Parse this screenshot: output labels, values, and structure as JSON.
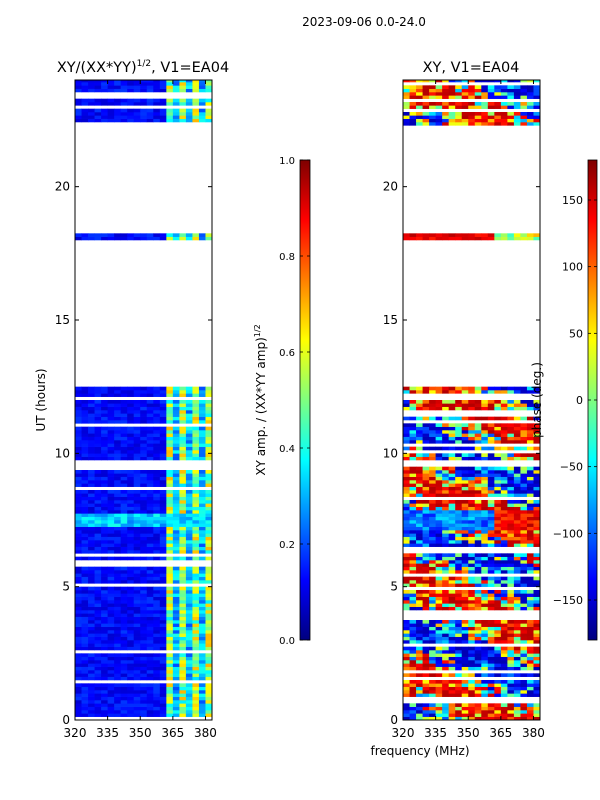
{
  "figure": {
    "suptitle": "2023-09-06 0.0-24.0",
    "xlabel": "frequency (MHz)"
  },
  "chart_data": [
    {
      "type": "heatmap",
      "title": "XY/(XX*YY)",
      "title_exp": "1/2",
      "title_suffix": ", V1=EA04",
      "ylabel": "UT (hours)",
      "x_ticks": [
        320,
        335,
        350,
        365,
        380
      ],
      "y_ticks": [
        0,
        5,
        10,
        15,
        20
      ],
      "xlim": [
        320,
        383
      ],
      "ylim": [
        0,
        24
      ],
      "data_rows_hours": [
        [
          0,
          12.5
        ],
        [
          18.0,
          18.4
        ],
        [
          22.3,
          24.0
        ]
      ],
      "colorbar": {
        "label": "XY amp. / (XX*YY amp)",
        "label_exp": "1/2",
        "ticks": [
          "0.0",
          "0.2",
          "0.4",
          "0.6",
          "0.8",
          "1.0"
        ],
        "range": [
          0.0,
          1.0
        ],
        "colormap": "jet"
      }
    },
    {
      "type": "heatmap",
      "title": "XY, V1=EA04",
      "x_ticks": [
        320,
        335,
        350,
        365,
        380
      ],
      "y_ticks": [
        0,
        5,
        10,
        15,
        20
      ],
      "xlim": [
        320,
        383
      ],
      "ylim": [
        0,
        24
      ],
      "data_rows_hours": [
        [
          0,
          12.5
        ],
        [
          18.0,
          18.4
        ],
        [
          22.3,
          24.0
        ]
      ],
      "colorbar": {
        "label": "phase (deg.)",
        "ticks": [
          "−150",
          "−100",
          "−50",
          "0",
          "50",
          "100",
          "150"
        ],
        "range": [
          -180,
          180
        ],
        "colormap": "jet"
      }
    }
  ]
}
